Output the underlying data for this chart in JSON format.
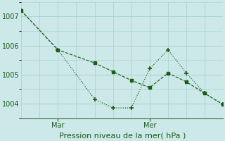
{
  "title": "Pression niveau de la mer( hPa )",
  "background_color": "#cce8e8",
  "grid_color": "#a8d0d0",
  "line_color": "#1a5c1a",
  "tick_color": "#3a6a3a",
  "ylim": [
    1003.5,
    1007.5
  ],
  "yticks": [
    1004,
    1005,
    1006,
    1007
  ],
  "x_mar_label": "Mar",
  "x_mer_label": "Mer",
  "mar_x": 2,
  "mer_x": 7,
  "xlim": [
    0,
    11
  ],
  "line_dashed_x": [
    0,
    2,
    4,
    5,
    6,
    7,
    8,
    9,
    10,
    11
  ],
  "line_dashed_y": [
    1007.2,
    1005.85,
    1005.4,
    1005.1,
    1004.8,
    1004.55,
    1005.05,
    1004.75,
    1004.35,
    1003.97
  ],
  "line_dotted_x": [
    0,
    2,
    4,
    5,
    6,
    7,
    8,
    9,
    10,
    11
  ],
  "line_dotted_y": [
    1007.2,
    1005.85,
    1004.15,
    1003.85,
    1003.85,
    1005.2,
    1005.85,
    1005.05,
    1004.35,
    1003.97
  ],
  "title_fontsize": 8,
  "tick_fontsize": 7
}
